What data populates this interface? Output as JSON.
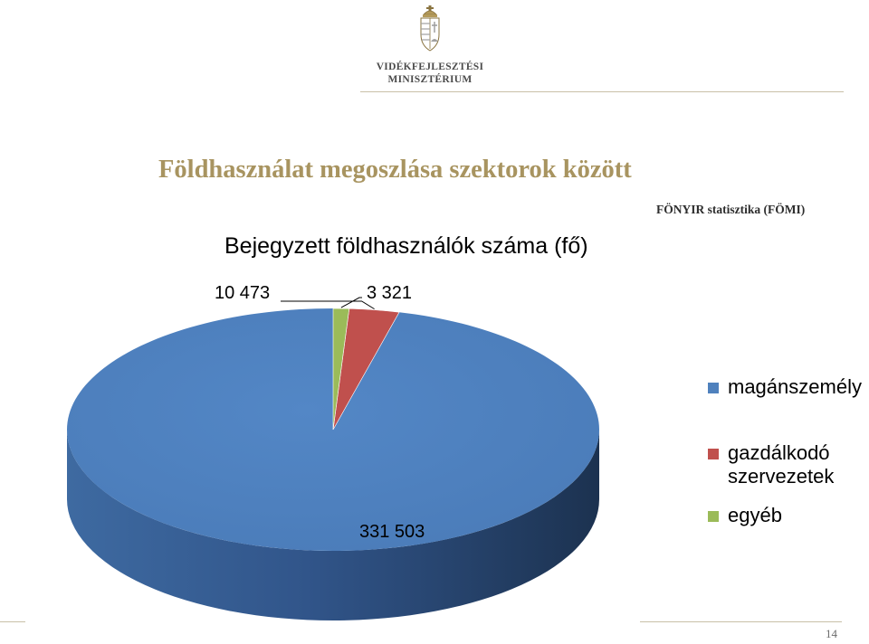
{
  "header": {
    "ministry_line1": "VIDÉKFEJLESZTÉSI",
    "ministry_line2": "MINISZTÉRIUM"
  },
  "slide": {
    "title": "Földhasználat megoszlása szektorok között",
    "source": "FÖNYIR statisztika (FÖMI)",
    "page_number": "14"
  },
  "colors": {
    "title": "#a89460",
    "private": "#4f81bd",
    "economic": "#c0504d",
    "other": "#9bbb59"
  },
  "chart_data": {
    "type": "pie",
    "title": "Bejegyzett földhasználók száma (fő)",
    "categories": [
      "magánszemély",
      "gazdálkodó szervezetek",
      "egyéb"
    ],
    "values": [
      331503,
      10473,
      3321
    ],
    "data_labels": [
      "331 503",
      "10 473",
      "3 321"
    ],
    "colors": [
      "#4f81bd",
      "#c0504d",
      "#9bbb59"
    ],
    "legend_position": "right",
    "style": "3d"
  }
}
